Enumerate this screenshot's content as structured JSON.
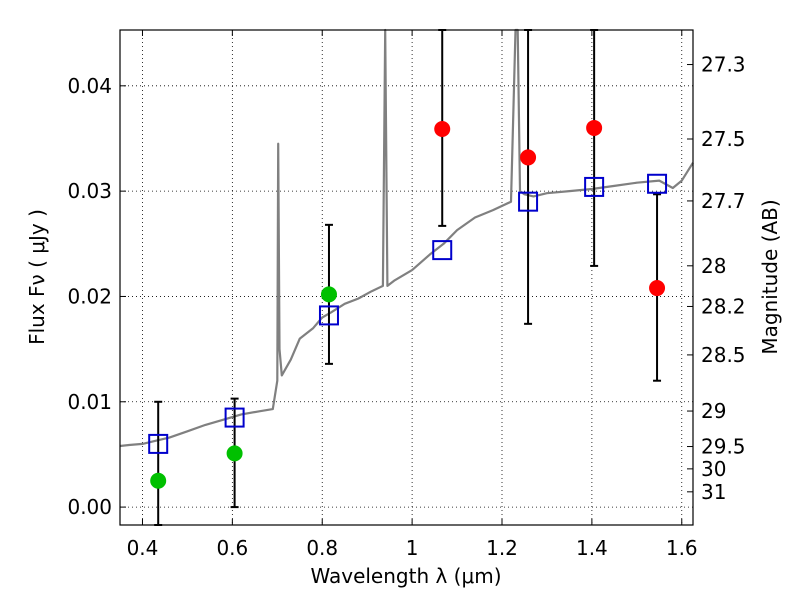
{
  "chart_data": {
    "type": "scatter",
    "xlabel": "Wavelength  λ (μm)",
    "ylabel": "Flux  Fν  ( μJy )",
    "y2label": "Magnitude (AB)",
    "xlim": [
      0.35,
      1.625
    ],
    "ylim": [
      -0.0017,
      0.0453
    ],
    "grid": true,
    "x_ticks": [
      0.4,
      0.6,
      0.8,
      1.0,
      1.2,
      1.4,
      1.6
    ],
    "x_tick_labels": [
      "0.4",
      "0.6",
      "0.8",
      "1",
      "1.2",
      "1.4",
      "1.6"
    ],
    "y_ticks": [
      0.0,
      0.01,
      0.02,
      0.03,
      0.04
    ],
    "y_tick_labels": [
      "0.00",
      "0.01",
      "0.02",
      "0.03",
      "0.04"
    ],
    "y2_tick_labels": [
      "27.3",
      "27.5",
      "27.7",
      "28",
      "28.2",
      "28.5",
      "29",
      "29.5",
      "30",
      "31"
    ],
    "y2_tick_flux": [
      0.04202,
      0.03495,
      0.02907,
      0.02291,
      0.01905,
      0.01445,
      0.00912,
      0.00575,
      0.00363,
      0.00145
    ],
    "colors": {
      "spectrum": "#808080",
      "green_points": "#00c000",
      "red_points": "#ff0000",
      "model_squares": "#0000cc",
      "error_bars": "#000000"
    },
    "series": [
      {
        "kind": "line",
        "x": [
          0.35,
          0.37,
          0.4,
          0.43,
          0.46,
          0.5,
          0.54,
          0.58,
          0.62,
          0.66,
          0.69,
          0.7,
          0.702,
          0.705,
          0.71,
          0.73,
          0.75,
          0.78,
          0.8,
          0.82,
          0.85,
          0.88,
          0.91,
          0.935,
          0.94,
          0.945,
          0.96,
          1.0,
          1.04,
          1.07,
          1.1,
          1.14,
          1.18,
          1.22,
          1.23,
          1.235,
          1.24,
          1.25,
          1.27,
          1.3,
          1.35,
          1.4,
          1.45,
          1.5,
          1.55,
          1.58,
          1.6,
          1.625
        ],
        "y": [
          0.0058,
          0.0059,
          0.006,
          0.0063,
          0.0066,
          0.0072,
          0.0078,
          0.0083,
          0.0088,
          0.0091,
          0.0093,
          0.012,
          0.0345,
          0.015,
          0.0125,
          0.014,
          0.016,
          0.017,
          0.018,
          0.0185,
          0.0193,
          0.0198,
          0.0205,
          0.021,
          0.0453,
          0.021,
          0.0215,
          0.0225,
          0.024,
          0.025,
          0.0263,
          0.0275,
          0.0282,
          0.029,
          0.0453,
          0.0453,
          0.03,
          0.0297,
          0.0295,
          0.0298,
          0.03,
          0.0302,
          0.0305,
          0.0308,
          0.031,
          0.0303,
          0.031,
          0.0327
        ]
      },
      {
        "kind": "points",
        "marker": "circle",
        "color_key": "green_points",
        "x": [
          0.435,
          0.605,
          0.815
        ],
        "y": [
          0.0025,
          0.0051,
          0.0202
        ],
        "yerr_low": [
          -0.0017,
          0.0,
          0.0136
        ],
        "yerr_high": [
          0.01,
          0.0103,
          0.0268
        ]
      },
      {
        "kind": "points",
        "marker": "circle",
        "color_key": "red_points",
        "x": [
          1.067,
          1.258,
          1.405,
          1.545
        ],
        "y": [
          0.0359,
          0.0332,
          0.036,
          0.0208
        ],
        "yerr_low": [
          0.0267,
          0.0174,
          0.0229,
          0.012
        ],
        "yerr_high": [
          0.0453,
          0.0453,
          0.0453,
          0.0297
        ]
      },
      {
        "kind": "points",
        "marker": "open-square",
        "color_key": "model_squares",
        "x": [
          0.435,
          0.605,
          0.815,
          1.067,
          1.258,
          1.405,
          1.545
        ],
        "y": [
          0.006,
          0.0085,
          0.0182,
          0.0244,
          0.029,
          0.0304,
          0.0307
        ]
      }
    ]
  }
}
